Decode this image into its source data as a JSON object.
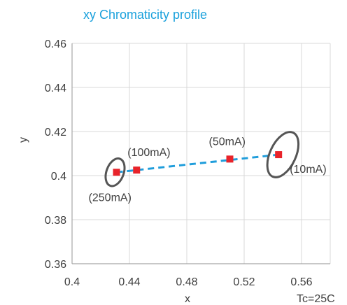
{
  "chart_data": {
    "type": "scatter",
    "title": "xy Chromaticity profile",
    "xlabel": "x",
    "ylabel": "y",
    "xlim": [
      0.4,
      0.58
    ],
    "ylim": [
      0.36,
      0.46
    ],
    "grid": true,
    "x_ticks": [
      "0.4",
      "0.44",
      "0.48",
      "0.52",
      "0.56"
    ],
    "y_ticks": [
      "0.46",
      "0.44",
      "0.42",
      "0.4",
      "0.38",
      "0.36"
    ],
    "x_tick_values": [
      0.4,
      0.44,
      0.48,
      0.52,
      0.56
    ],
    "y_tick_values": [
      0.46,
      0.44,
      0.42,
      0.4,
      0.38,
      0.36
    ],
    "points": [
      {
        "label": "(250mA)",
        "x": 0.431,
        "y": 0.4015
      },
      {
        "label": "(100mA)",
        "x": 0.445,
        "y": 0.4025
      },
      {
        "label": "(50mA)",
        "x": 0.51,
        "y": 0.4075
      },
      {
        "label": "(10mA)",
        "x": 0.544,
        "y": 0.4095
      }
    ],
    "trend_line": {
      "x1": 0.431,
      "y1": 0.4015,
      "x2": 0.544,
      "y2": 0.4095
    },
    "ellipses": [
      {
        "cx": 0.43,
        "cy": 0.4015,
        "rx": 0.006,
        "ry": 0.0065,
        "rotate": 20
      },
      {
        "cx": 0.547,
        "cy": 0.4095,
        "rx": 0.009,
        "ry": 0.011,
        "rotate": 25
      }
    ],
    "annotation": "Tc=25C",
    "colors": {
      "title": "#1BA1DC",
      "marker": "#E8232A",
      "line": "#1F9DDB",
      "ellipse": "#555555",
      "grid": "#D9D9D9",
      "text": "#404040"
    }
  }
}
